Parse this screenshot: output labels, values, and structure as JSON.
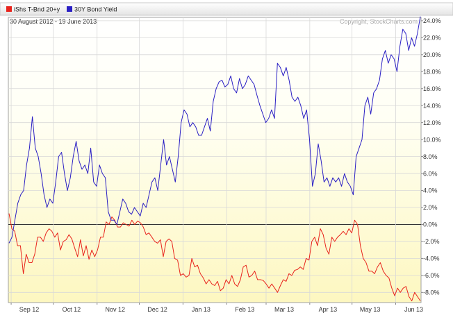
{
  "chart_data": {
    "type": "line",
    "subtitle": "30 August 2012 - 19 June 2013",
    "copyright": "Copyright, StockCharts.com",
    "x_labels": [
      "Sep 12",
      "Oct 12",
      "Nov 12",
      "Dec 12",
      "Jan 13",
      "Feb 13",
      "Mar 13",
      "Apr 13",
      "May 13",
      "Jun 13"
    ],
    "y_ticks": [
      "24.0%",
      "22.0%",
      "20.0%",
      "18.0%",
      "16.0%",
      "14.0%",
      "12.0%",
      "10.0%",
      "8.0%",
      "6.0%",
      "4.0%",
      "2.0%",
      "0.0%",
      "-2.0%",
      "-4.0%",
      "-6.0%",
      "-8.0%"
    ],
    "ylim": [
      -9.2,
      24.4
    ],
    "grid": true,
    "legend_position": "top-left",
    "colors": {
      "series_1": "#e8231c",
      "series_2": "#2a1fc4",
      "zero_line": "#333333",
      "grid": "#d8d8d8"
    },
    "series": [
      {
        "name": "iShs T-Bnd 20+y",
        "color": "#e8231c",
        "values": [
          1.3,
          -0.5,
          -0.8,
          -2.5,
          -2.5,
          -5.8,
          -3.5,
          -4.5,
          -4.5,
          -3.5,
          -1.5,
          -1.5,
          -2.0,
          -1.0,
          -0.5,
          -0.8,
          -1.5,
          -1.0,
          -3.0,
          -2.0,
          -1.8,
          -1.2,
          -1.7,
          -2.8,
          -3.8,
          -1.8,
          -3.7,
          -2.5,
          -4.1,
          -3.0,
          -3.8,
          -3.0,
          -1.5,
          -1.5,
          0.3,
          0.0,
          0.9,
          0.5,
          -0.3,
          -0.3,
          0.2,
          0.0,
          -0.2,
          0.5,
          0.0,
          0.4,
          0.2,
          -0.3,
          -1.2,
          -1.0,
          -1.5,
          -2.0,
          -2.2,
          -1.8,
          -3.8,
          -2.0,
          -1.7,
          -2.0,
          -4.0,
          -4.2,
          -6.0,
          -5.8,
          -6.2,
          -6.0,
          -4.0,
          -5.0,
          -4.8,
          -5.8,
          -6.3,
          -7.0,
          -6.5,
          -7.0,
          -7.2,
          -6.7,
          -7.8,
          -7.5,
          -6.5,
          -7.0,
          -6.0,
          -7.0,
          -7.3,
          -6.5,
          -5.0,
          -4.8,
          -6.2,
          -6.0,
          -5.5,
          -6.5,
          -6.5,
          -6.6,
          -7.0,
          -7.5,
          -7.0,
          -7.5,
          -8.0,
          -7.2,
          -6.5,
          -6.7,
          -5.8,
          -6.0,
          -5.4,
          -5.3,
          -5.0,
          -5.3,
          -4.0,
          -4.2,
          -2.0,
          -1.5,
          -2.5,
          -0.5,
          -1.2,
          -2.8,
          -3.5,
          -1.5,
          -2.0,
          -1.5,
          -1.2,
          -0.8,
          -1.2,
          -0.5,
          -1.0,
          0.5,
          0.0,
          -2.5,
          -4.0,
          -4.5,
          -5.5,
          -5.5,
          -5.8,
          -5.0,
          -4.5,
          -5.5,
          -6.0,
          -6.3,
          -7.5,
          -8.4,
          -7.5,
          -8.0,
          -7.5,
          -7.3,
          -8.5,
          -9.0,
          -8.0,
          -8.5,
          -9.0
        ]
      },
      {
        "name": "30Y Bond Yield",
        "color": "#2a1fc4",
        "values": [
          -2.2,
          -1.5,
          0.5,
          2.5,
          3.5,
          4.0,
          7.0,
          9.0,
          12.7,
          9.0,
          8.0,
          6.0,
          3.5,
          2.0,
          3.0,
          2.5,
          5.0,
          8.0,
          8.5,
          6.0,
          4.0,
          5.5,
          8.0,
          9.8,
          7.5,
          6.5,
          7.0,
          6.0,
          9.0,
          5.0,
          4.5,
          7.0,
          6.0,
          5.5,
          1.5,
          0.5,
          0.5,
          0.0,
          1.5,
          3.0,
          2.5,
          1.5,
          1.2,
          2.0,
          1.5,
          1.0,
          2.5,
          2.0,
          3.5,
          5.0,
          5.5,
          4.0,
          7.0,
          10.0,
          7.0,
          8.0,
          6.5,
          5.0,
          8.0,
          12.0,
          13.5,
          13.0,
          11.5,
          12.0,
          11.5,
          10.5,
          10.5,
          11.5,
          12.5,
          11.0,
          14.5,
          16.0,
          16.8,
          17.0,
          16.2,
          16.5,
          17.5,
          16.0,
          15.5,
          17.2,
          16.0,
          16.5,
          17.5,
          17.0,
          16.5,
          15.2,
          14.0,
          13.0,
          12.0,
          12.5,
          13.5,
          12.5,
          19.0,
          18.5,
          17.5,
          18.5,
          17.0,
          15.0,
          14.5,
          15.0,
          14.0,
          12.5,
          13.5,
          10.0,
          4.5,
          6.0,
          9.5,
          7.5,
          5.0,
          5.5,
          4.5,
          5.5,
          5.0,
          5.5,
          4.5,
          6.0,
          5.0,
          4.5,
          3.5,
          8.0,
          9.0,
          10.0,
          14.0,
          15.0,
          13.0,
          15.5,
          16.0,
          17.0,
          19.5,
          20.5,
          19.0,
          20.0,
          19.5,
          18.0,
          21.0,
          23.0,
          22.5,
          20.5,
          22.0,
          21.0,
          22.5,
          24.5
        ]
      }
    ]
  }
}
